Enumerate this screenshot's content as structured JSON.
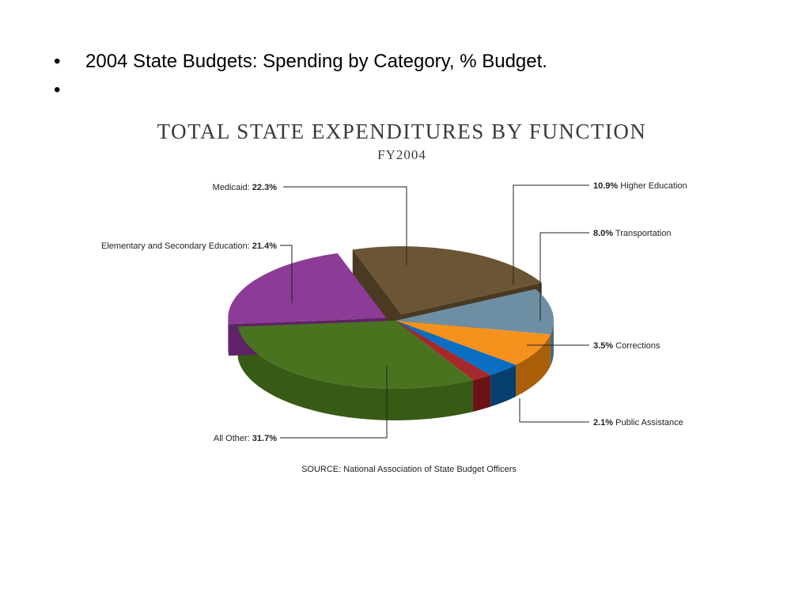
{
  "slide": {
    "bullets": [
      "2004 State Budgets: Spending by Category, % Budget.",
      ""
    ],
    "bullet_glyph": "•"
  },
  "chart_data": {
    "type": "pie",
    "title": "TOTAL STATE EXPENDITURES BY FUNCTION",
    "subtitle": "FY2004",
    "source": "SOURCE: National Association of State Budget Officers",
    "slices": [
      {
        "name": "Medicaid",
        "value": 22.3,
        "pct_label": "22.3%",
        "color": "#6b5535",
        "side": "#4a3a22"
      },
      {
        "name": "Higher Education",
        "value": 10.9,
        "pct_label": "10.9%",
        "color": "#6e8fa3",
        "side": "#4d6878"
      },
      {
        "name": "Transportation",
        "value": 8.0,
        "pct_label": "8.0%",
        "color": "#f5921e",
        "side": "#a85f08"
      },
      {
        "name": "Corrections",
        "value": 3.5,
        "pct_label": "3.5%",
        "color": "#0a6fc2",
        "side": "#063e6e"
      },
      {
        "name": "Public Assistance",
        "value": 2.1,
        "pct_label": "2.1%",
        "color": "#a5282a",
        "side": "#6a1214"
      },
      {
        "name": "All Other",
        "value": 31.7,
        "pct_label": "31.7%",
        "color": "#4a7320",
        "side": "#375a14"
      },
      {
        "name": "Elementary and Secondary Education",
        "value": 21.4,
        "pct_label": "21.4%",
        "color": "#8c3b97",
        "side": "#5e2266"
      }
    ]
  }
}
